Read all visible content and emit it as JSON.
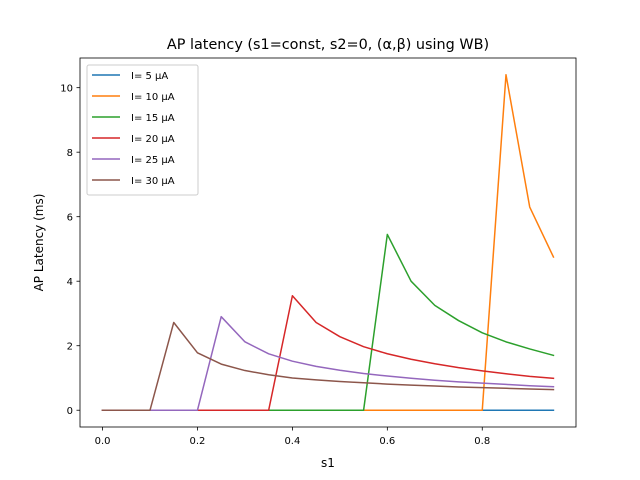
{
  "chart_data": {
    "type": "line",
    "title": "AP latency (s1=const, s2=0, (α,β) using WB)",
    "xlabel": "s1",
    "ylabel": "AP Latency (ms)",
    "xlim": [
      -0.0475,
      0.9975
    ],
    "ylim": [
      -0.52,
      10.92
    ],
    "xticks": [
      0.0,
      0.2,
      0.4,
      0.6,
      0.8
    ],
    "xtick_labels": [
      "0.0",
      "0.2",
      "0.4",
      "0.6",
      "0.8"
    ],
    "yticks": [
      0,
      2,
      4,
      6,
      8,
      10
    ],
    "ytick_labels": [
      "0",
      "2",
      "4",
      "6",
      "8",
      "10"
    ],
    "grid": false,
    "legend_position": "top-left",
    "x": [
      0.0,
      0.05,
      0.1,
      0.15,
      0.2,
      0.25,
      0.3,
      0.35,
      0.4,
      0.45,
      0.5,
      0.55,
      0.6,
      0.65,
      0.7,
      0.75,
      0.8,
      0.85,
      0.9,
      0.95
    ],
    "series": [
      {
        "name": "I= 5 μA",
        "color": "#1f77b4",
        "values": [
          0,
          0,
          0,
          0,
          0,
          0,
          0,
          0,
          0,
          0,
          0,
          0,
          0,
          0,
          0,
          0,
          0,
          0,
          0,
          0
        ]
      },
      {
        "name": "I= 10 μA",
        "color": "#ff7f0e",
        "values": [
          0,
          0,
          0,
          0,
          0,
          0,
          0,
          0,
          0,
          0,
          0,
          0,
          0,
          0,
          0,
          0,
          0,
          10.4,
          6.3,
          4.75
        ]
      },
      {
        "name": "I= 15 μA",
        "color": "#2ca02c",
        "values": [
          0,
          0,
          0,
          0,
          0,
          0,
          0,
          0,
          0,
          0,
          0,
          0,
          5.45,
          4.0,
          3.25,
          2.78,
          2.4,
          2.12,
          1.9,
          1.7
        ]
      },
      {
        "name": "I= 20 μA",
        "color": "#d62728",
        "values": [
          0,
          0,
          0,
          0,
          0,
          0,
          0,
          0,
          3.55,
          2.72,
          2.28,
          1.97,
          1.75,
          1.58,
          1.44,
          1.32,
          1.22,
          1.13,
          1.05,
          0.99
        ]
      },
      {
        "name": "I= 25 μA",
        "color": "#9467bd",
        "values": [
          0,
          0,
          0,
          0,
          0,
          2.9,
          2.12,
          1.75,
          1.52,
          1.36,
          1.24,
          1.14,
          1.06,
          0.99,
          0.93,
          0.88,
          0.84,
          0.8,
          0.76,
          0.73
        ]
      },
      {
        "name": "I= 30 μA",
        "color": "#8c564b",
        "values": [
          0,
          0,
          0,
          2.72,
          1.78,
          1.43,
          1.23,
          1.1,
          1.0,
          0.94,
          0.89,
          0.85,
          0.81,
          0.78,
          0.75,
          0.72,
          0.7,
          0.68,
          0.66,
          0.64
        ]
      }
    ]
  }
}
